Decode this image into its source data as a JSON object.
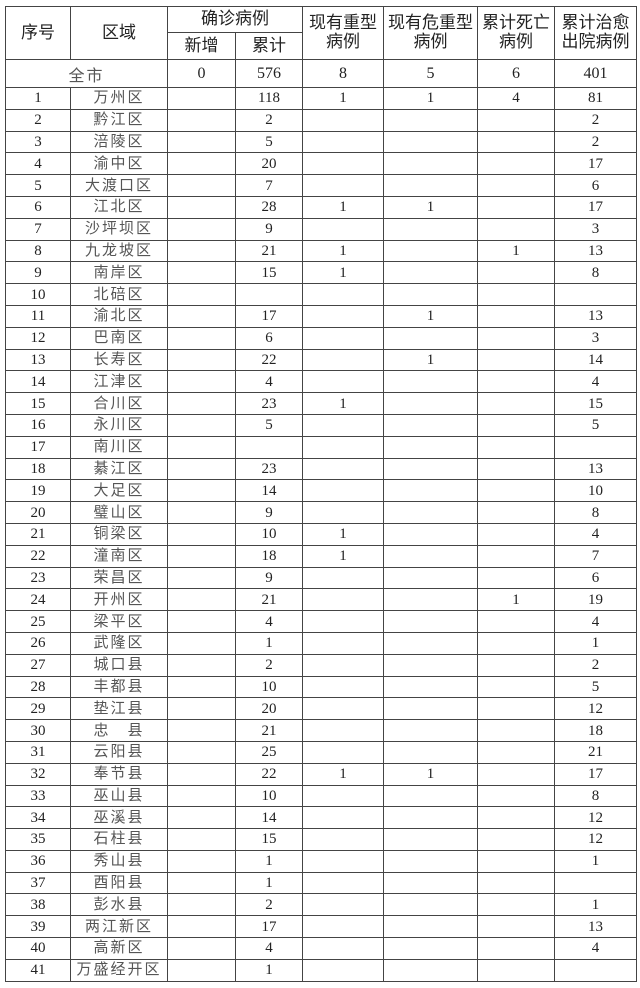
{
  "header": {
    "no": "序号",
    "region": "区域",
    "confirmed": "确诊病例",
    "new": "新增",
    "cumulative": "累计",
    "severe": "现有重型病例",
    "critical": "现有危重型病例",
    "deaths": "累计死亡病例",
    "recovered": "累计治愈出院病例"
  },
  "total": {
    "label": "全市",
    "new": "0",
    "cumulative": "576",
    "severe": "8",
    "critical": "5",
    "deaths": "6",
    "recovered": "401"
  },
  "rows": [
    [
      "1",
      "万州区",
      "",
      "118",
      "1",
      "1",
      "4",
      "81"
    ],
    [
      "2",
      "黔江区",
      "",
      "2",
      "",
      "",
      "",
      "2"
    ],
    [
      "3",
      "涪陵区",
      "",
      "5",
      "",
      "",
      "",
      "2"
    ],
    [
      "4",
      "渝中区",
      "",
      "20",
      "",
      "",
      "",
      "17"
    ],
    [
      "5",
      "大渡口区",
      "",
      "7",
      "",
      "",
      "",
      "6"
    ],
    [
      "6",
      "江北区",
      "",
      "28",
      "1",
      "1",
      "",
      "17"
    ],
    [
      "7",
      "沙坪坝区",
      "",
      "9",
      "",
      "",
      "",
      "3"
    ],
    [
      "8",
      "九龙坡区",
      "",
      "21",
      "1",
      "",
      "1",
      "13"
    ],
    [
      "9",
      "南岸区",
      "",
      "15",
      "1",
      "",
      "",
      "8"
    ],
    [
      "10",
      "北碚区",
      "",
      "",
      "",
      "",
      "",
      ""
    ],
    [
      "11",
      "渝北区",
      "",
      "17",
      "",
      "1",
      "",
      "13"
    ],
    [
      "12",
      "巴南区",
      "",
      "6",
      "",
      "",
      "",
      "3"
    ],
    [
      "13",
      "长寿区",
      "",
      "22",
      "",
      "1",
      "",
      "14"
    ],
    [
      "14",
      "江津区",
      "",
      "4",
      "",
      "",
      "",
      "4"
    ],
    [
      "15",
      "合川区",
      "",
      "23",
      "1",
      "",
      "",
      "15"
    ],
    [
      "16",
      "永川区",
      "",
      "5",
      "",
      "",
      "",
      "5"
    ],
    [
      "17",
      "南川区",
      "",
      "",
      "",
      "",
      "",
      ""
    ],
    [
      "18",
      "綦江区",
      "",
      "23",
      "",
      "",
      "",
      "13"
    ],
    [
      "19",
      "大足区",
      "",
      "14",
      "",
      "",
      "",
      "10"
    ],
    [
      "20",
      "璧山区",
      "",
      "9",
      "",
      "",
      "",
      "8"
    ],
    [
      "21",
      "铜梁区",
      "",
      "10",
      "1",
      "",
      "",
      "4"
    ],
    [
      "22",
      "潼南区",
      "",
      "18",
      "1",
      "",
      "",
      "7"
    ],
    [
      "23",
      "荣昌区",
      "",
      "9",
      "",
      "",
      "",
      "6"
    ],
    [
      "24",
      "开州区",
      "",
      "21",
      "",
      "",
      "1",
      "19"
    ],
    [
      "25",
      "梁平区",
      "",
      "4",
      "",
      "",
      "",
      "4"
    ],
    [
      "26",
      "武隆区",
      "",
      "1",
      "",
      "",
      "",
      "1"
    ],
    [
      "27",
      "城口县",
      "",
      "2",
      "",
      "",
      "",
      "2"
    ],
    [
      "28",
      "丰都县",
      "",
      "10",
      "",
      "",
      "",
      "5"
    ],
    [
      "29",
      "垫江县",
      "",
      "20",
      "",
      "",
      "",
      "12"
    ],
    [
      "30",
      "忠　县",
      "",
      "21",
      "",
      "",
      "",
      "18"
    ],
    [
      "31",
      "云阳县",
      "",
      "25",
      "",
      "",
      "",
      "21"
    ],
    [
      "32",
      "奉节县",
      "",
      "22",
      "1",
      "1",
      "",
      "17"
    ],
    [
      "33",
      "巫山县",
      "",
      "10",
      "",
      "",
      "",
      "8"
    ],
    [
      "34",
      "巫溪县",
      "",
      "14",
      "",
      "",
      "",
      "12"
    ],
    [
      "35",
      "石柱县",
      "",
      "15",
      "",
      "",
      "",
      "12"
    ],
    [
      "36",
      "秀山县",
      "",
      "1",
      "",
      "",
      "",
      "1"
    ],
    [
      "37",
      "酉阳县",
      "",
      "1",
      "",
      "",
      "",
      ""
    ],
    [
      "38",
      "彭水县",
      "",
      "2",
      "",
      "",
      "",
      "1"
    ],
    [
      "39",
      "两江新区",
      "",
      "17",
      "",
      "",
      "",
      "13"
    ],
    [
      "40",
      "高新区",
      "",
      "4",
      "",
      "",
      "",
      "4"
    ],
    [
      "41",
      "万盛经开区",
      "",
      "1",
      "",
      "",
      "",
      ""
    ]
  ]
}
